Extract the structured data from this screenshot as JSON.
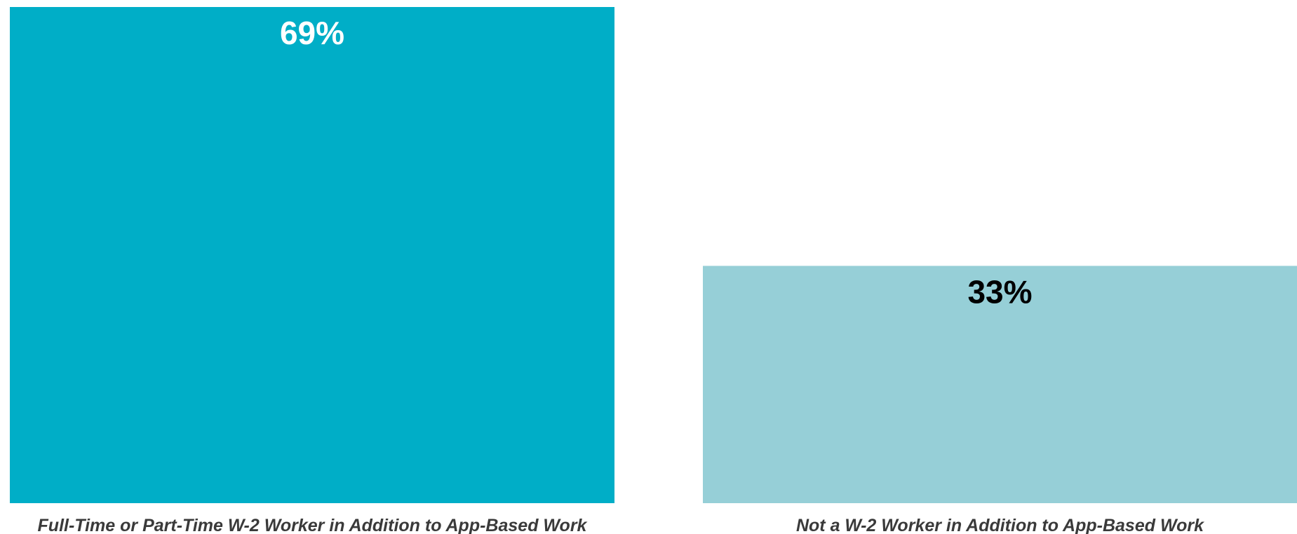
{
  "chart_data": {
    "type": "bar",
    "title": "",
    "xlabel": "",
    "ylabel": "",
    "ylim": [
      0,
      69
    ],
    "grid": false,
    "legend": "none",
    "categories": [
      "Full-Time or Part-Time W-2 Worker in Addition to App-Based Work",
      "Not a W-2 Worker in Addition to App-Based Work"
    ],
    "values": [
      69,
      33
    ],
    "value_labels": [
      "69%",
      "33%"
    ],
    "colors": [
      "#00AEC7",
      "#96CFD7"
    ],
    "value_label_colors": [
      "#ffffff",
      "#000000"
    ]
  }
}
